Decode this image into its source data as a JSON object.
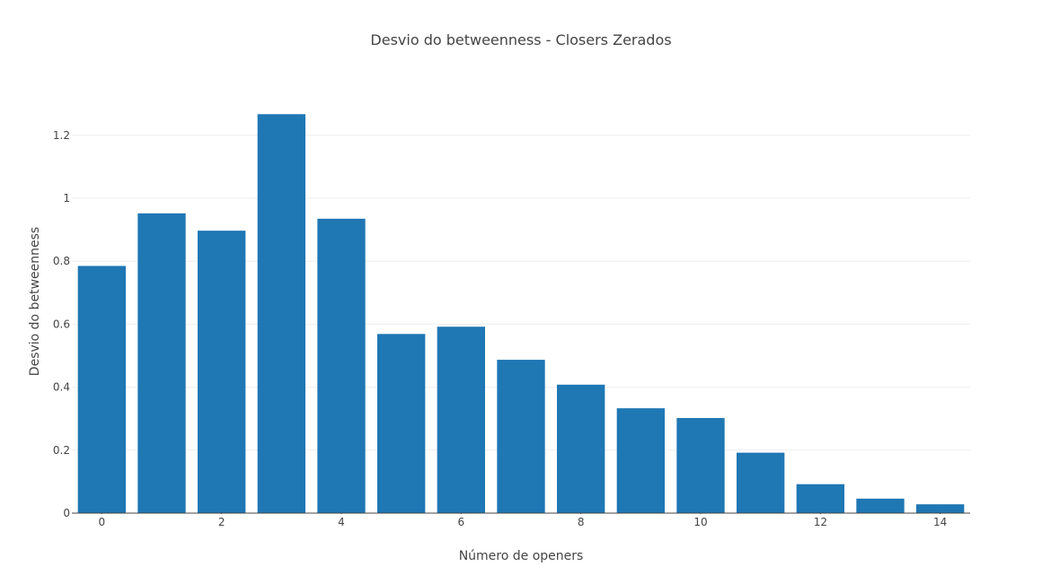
{
  "chart_data": {
    "type": "bar",
    "title": "Desvio do betweenness - Closers Zerados",
    "xlabel": "Número de openers",
    "ylabel": "Desvio do betweenness",
    "x": [
      0,
      1,
      2,
      3,
      4,
      5,
      6,
      7,
      8,
      9,
      10,
      11,
      12,
      13,
      14
    ],
    "values": [
      0.785,
      0.952,
      0.897,
      1.267,
      0.935,
      0.569,
      0.592,
      0.487,
      0.408,
      0.333,
      0.302,
      0.192,
      0.092,
      0.046,
      0.028
    ],
    "xticks": [
      0,
      2,
      4,
      6,
      8,
      10,
      12,
      14
    ],
    "yticks": [
      0,
      0.2,
      0.4,
      0.6,
      0.8,
      1,
      1.2
    ],
    "ytick_labels": [
      "0",
      "0.2",
      "0.4",
      "0.6",
      "0.8",
      "1",
      "1.2"
    ],
    "xlim": [
      -0.5,
      14.5
    ],
    "ylim": [
      0,
      1.3333
    ],
    "grid": true,
    "bar_color": "#1f77b4"
  }
}
